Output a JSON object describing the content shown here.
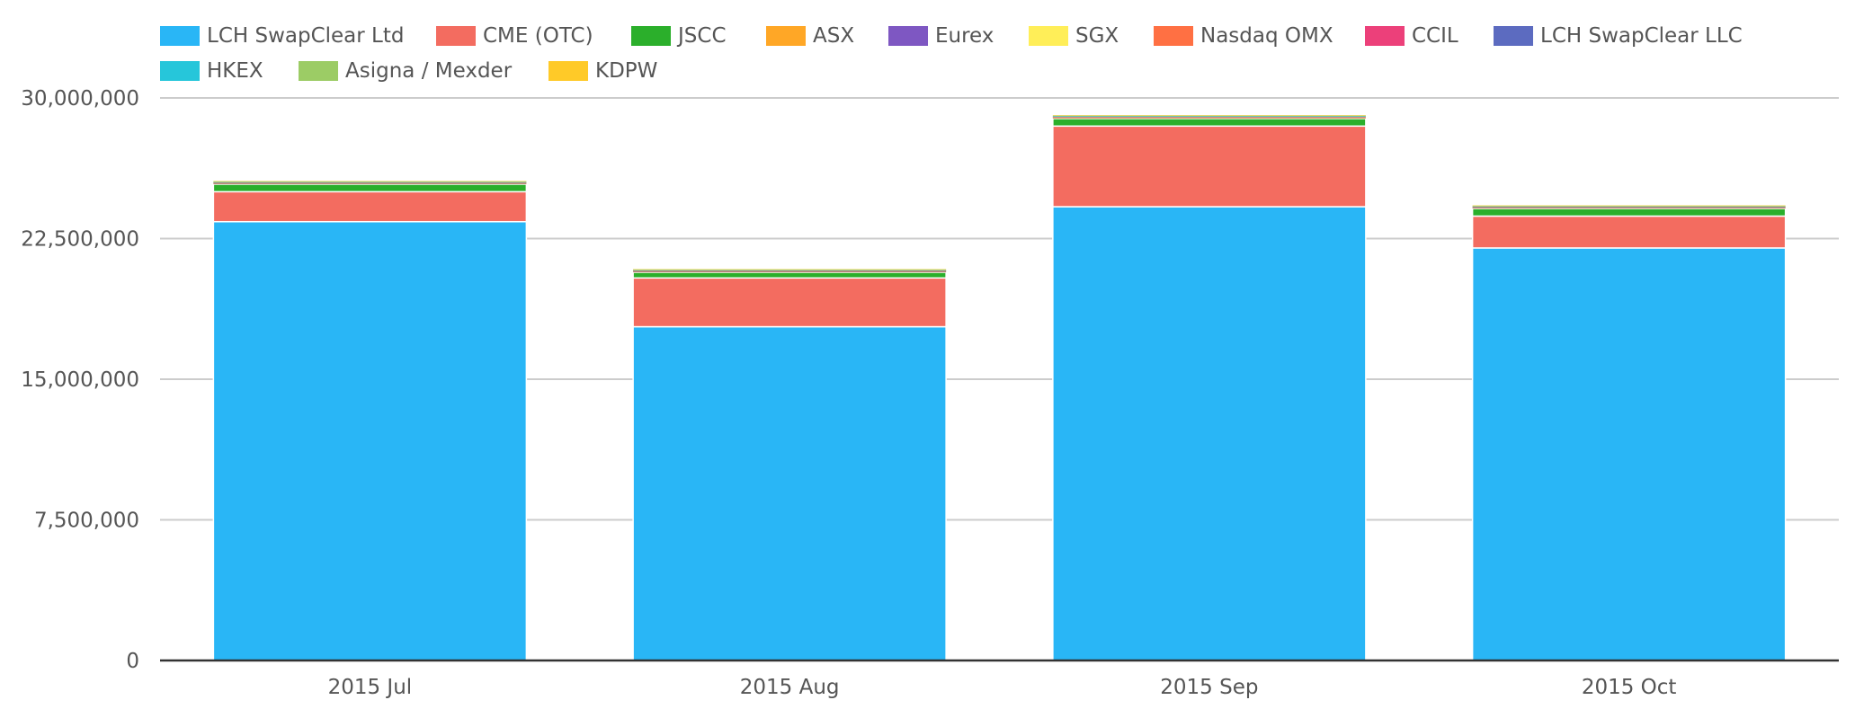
{
  "chart_data": {
    "type": "bar",
    "stacked": true,
    "categories": [
      "2015 Jul",
      "2015 Aug",
      "2015 Sep",
      "2015 Oct"
    ],
    "ylim": [
      0,
      30000000
    ],
    "yticks": [
      0,
      7500000,
      15000000,
      22500000,
      30000000
    ],
    "ytick_labels": [
      "0",
      "7,500,000",
      "15,000,000",
      "22,500,000",
      "30,000,000"
    ],
    "grid": true,
    "legend_position": "top",
    "series": [
      {
        "name": "LCH SwapClear Ltd",
        "color": "#29b6f6",
        "values": [
          23400000,
          17800000,
          24200000,
          22000000
        ]
      },
      {
        "name": "CME (OTC)",
        "color": "#f36c60",
        "values": [
          1600000,
          2600000,
          4300000,
          1700000
        ]
      },
      {
        "name": "JSCC",
        "color": "#2baf2b",
        "values": [
          400000,
          300000,
          400000,
          400000
        ]
      },
      {
        "name": "ASX",
        "color": "#ffa726",
        "values": [
          30000,
          30000,
          40000,
          30000
        ]
      },
      {
        "name": "Eurex",
        "color": "#7e57c2",
        "values": [
          20000,
          20000,
          20000,
          20000
        ]
      },
      {
        "name": "SGX",
        "color": "#ffee58",
        "values": [
          30000,
          30000,
          30000,
          30000
        ]
      },
      {
        "name": "Nasdaq OMX",
        "color": "#ff7043",
        "values": [
          5000,
          5000,
          5000,
          5000
        ]
      },
      {
        "name": "CCIL",
        "color": "#ec407a",
        "values": [
          5000,
          5000,
          5000,
          5000
        ]
      },
      {
        "name": "LCH SwapClear LLC",
        "color": "#5c6bc0",
        "values": [
          10000,
          10000,
          10000,
          10000
        ]
      },
      {
        "name": "HKEX",
        "color": "#26c6da",
        "values": [
          10000,
          10000,
          10000,
          10000
        ]
      },
      {
        "name": "Asigna / Mexder",
        "color": "#9ccc65",
        "values": [
          50000,
          50000,
          50000,
          50000
        ]
      },
      {
        "name": "KDPW",
        "color": "#ffca28",
        "values": [
          5000,
          5000,
          5000,
          5000
        ]
      }
    ]
  }
}
